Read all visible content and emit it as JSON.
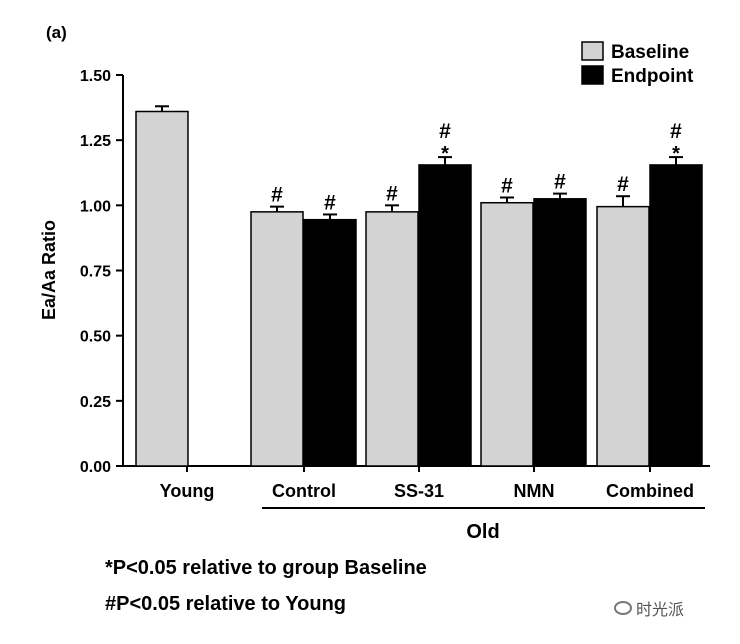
{
  "panel_label": "(a)",
  "chart_data": {
    "type": "bar",
    "ylabel": "Ea/Aa Ratio",
    "ylim": [
      0,
      1.5
    ],
    "yticks": [
      0.0,
      0.25,
      0.5,
      0.75,
      1.0,
      1.25,
      1.5
    ],
    "ytick_labels": [
      "0.00",
      "0.25",
      "0.50",
      "0.75",
      "1.00",
      "1.25",
      "1.50"
    ],
    "categories": [
      "Young",
      "Control",
      "SS-31",
      "NMN",
      "Combined"
    ],
    "group_label": "Old",
    "series": [
      {
        "name": "Baseline",
        "color": "#d3d3d3",
        "values": [
          1.36,
          0.975,
          0.975,
          1.01,
          0.995
        ],
        "errors": [
          0.02,
          0.02,
          0.025,
          0.02,
          0.04
        ],
        "marks": [
          "",
          "#",
          "#",
          "#",
          "#"
        ]
      },
      {
        "name": "Endpoint",
        "color": "#000000",
        "values": [
          null,
          0.945,
          1.155,
          1.025,
          1.155
        ],
        "errors": [
          null,
          0.02,
          0.03,
          0.02,
          0.03
        ],
        "marks": [
          "",
          "#",
          "*#",
          "#",
          "*#"
        ]
      }
    ],
    "legend": [
      "Baseline",
      "Endpoint"
    ],
    "legend_position": "top-right"
  },
  "footnotes": [
    "*P<0.05 relative to group Baseline",
    "#P<0.05 relative to Young"
  ],
  "watermark": "时光派",
  "watermark_icon": "wechat-icon"
}
